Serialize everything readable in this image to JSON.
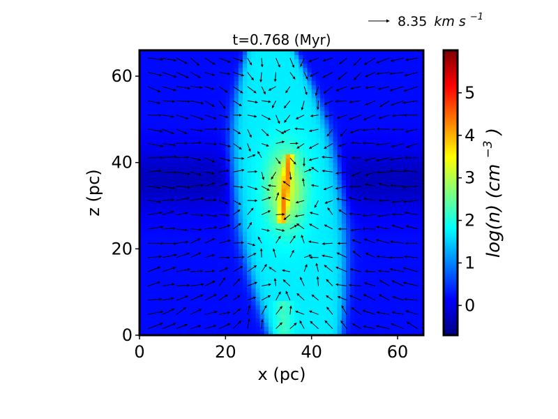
{
  "chart_data": {
    "type": "heatmap",
    "title": "t=0.768 (Myr)",
    "xlabel": "x (pc)",
    "ylabel": "z (pc)",
    "xlim": [
      0,
      66
    ],
    "ylim": [
      0,
      66
    ],
    "xticks": [
      0,
      20,
      40,
      60
    ],
    "yticks": [
      0,
      20,
      40,
      60
    ],
    "colorbar": {
      "label_base": "log(n) (cm",
      "label_exp": "−3",
      "label_close": ")",
      "range": [
        -0.7,
        6.0
      ],
      "ticks": [
        0,
        1,
        2,
        3,
        4,
        5
      ],
      "colormap": "jet",
      "colors": [
        "#00007f",
        "#0000ff",
        "#007fff",
        "#00ffff",
        "#7fff7f",
        "#ffff00",
        "#ff7f00",
        "#ff0000",
        "#7f0000"
      ]
    },
    "velocity_key": {
      "value": "8.35",
      "unit_base": "km s",
      "unit_exp": "−1"
    },
    "field": {
      "background_log_n": 0.2,
      "midplane_log_n": -0.3,
      "cloud_log_n": 1.7,
      "core_log_n": 3.2,
      "filament_log_n": 4.5,
      "filament_center_x": 33,
      "filament_z_range": [
        26,
        42
      ],
      "cloud_x_range": [
        22,
        47
      ],
      "cloud_z_range": [
        0,
        66
      ]
    },
    "grid": false,
    "legend": "top-right"
  }
}
